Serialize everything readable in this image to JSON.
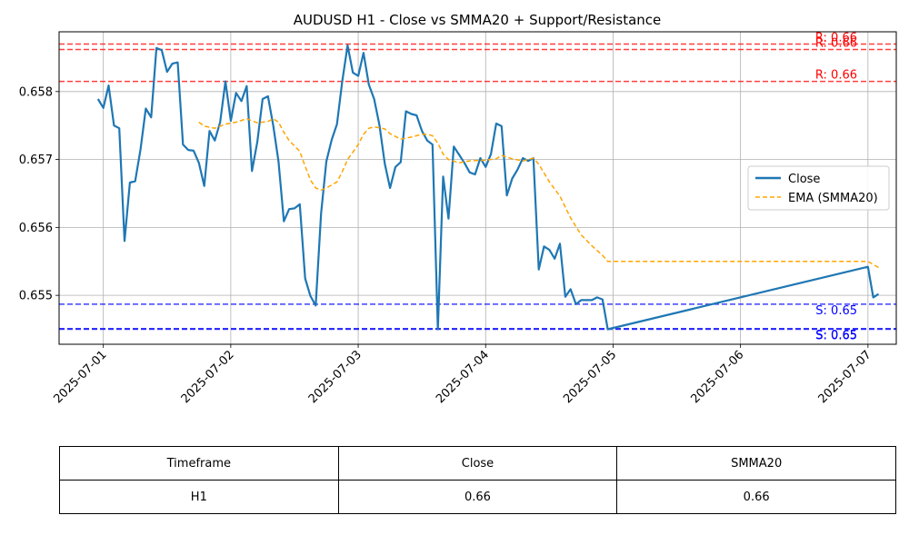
{
  "chart_data": {
    "type": "line",
    "title": "AUDUSD H1 - Close vs SMMA20 + Support/Resistance",
    "xlabel": "",
    "ylabel": "",
    "x_ticks": [
      "2025-07-01",
      "2025-07-02",
      "2025-07-03",
      "2025-07-04",
      "2025-07-05",
      "2025-07-06",
      "2025-07-07"
    ],
    "y_ticks": [
      "0.655",
      "0.656",
      "0.657",
      "0.658"
    ],
    "xlim": [
      "2025-06-30 15:40",
      "2025-07-07 05:20"
    ],
    "ylim": [
      0.65428,
      0.65888
    ],
    "grid": true,
    "legend_position": "center-right",
    "series": [
      {
        "name": "Close",
        "color": "#1f77b4",
        "style": "solid",
        "points": [
          [
            "2025-06-30 23:00",
            0.65789
          ],
          [
            "2025-07-01 00:00",
            0.65776
          ],
          [
            "2025-07-01 01:00",
            0.65809
          ],
          [
            "2025-07-01 02:00",
            0.6575
          ],
          [
            "2025-07-01 03:00",
            0.65746
          ],
          [
            "2025-07-01 04:00",
            0.6558
          ],
          [
            "2025-07-01 05:00",
            0.65666
          ],
          [
            "2025-07-01 06:00",
            0.65668
          ],
          [
            "2025-07-01 07:00",
            0.65715
          ],
          [
            "2025-07-01 08:00",
            0.65775
          ],
          [
            "2025-07-01 09:00",
            0.65762
          ],
          [
            "2025-07-01 10:00",
            0.65864
          ],
          [
            "2025-07-01 11:00",
            0.65861
          ],
          [
            "2025-07-01 12:00",
            0.65829
          ],
          [
            "2025-07-01 13:00",
            0.65841
          ],
          [
            "2025-07-01 14:00",
            0.65843
          ],
          [
            "2025-07-01 15:00",
            0.65722
          ],
          [
            "2025-07-01 16:00",
            0.65714
          ],
          [
            "2025-07-01 17:00",
            0.65713
          ],
          [
            "2025-07-01 18:00",
            0.65695
          ],
          [
            "2025-07-01 19:00",
            0.65661
          ],
          [
            "2025-07-01 20:00",
            0.65742
          ],
          [
            "2025-07-01 21:00",
            0.65728
          ],
          [
            "2025-07-01 22:00",
            0.65755
          ],
          [
            "2025-07-01 23:00",
            0.65815
          ],
          [
            "2025-07-02 00:00",
            0.65757
          ],
          [
            "2025-07-02 01:00",
            0.65798
          ],
          [
            "2025-07-02 02:00",
            0.65786
          ],
          [
            "2025-07-02 03:00",
            0.65808
          ],
          [
            "2025-07-02 04:00",
            0.65683
          ],
          [
            "2025-07-02 05:00",
            0.65726
          ],
          [
            "2025-07-02 06:00",
            0.65789
          ],
          [
            "2025-07-02 07:00",
            0.65793
          ],
          [
            "2025-07-02 08:00",
            0.6575
          ],
          [
            "2025-07-02 09:00",
            0.65697
          ],
          [
            "2025-07-02 10:00",
            0.65609
          ],
          [
            "2025-07-02 11:00",
            0.65627
          ],
          [
            "2025-07-02 12:00",
            0.65628
          ],
          [
            "2025-07-02 13:00",
            0.65634
          ],
          [
            "2025-07-02 14:00",
            0.65525
          ],
          [
            "2025-07-02 15:00",
            0.65499
          ],
          [
            "2025-07-02 16:00",
            0.65485
          ],
          [
            "2025-07-02 17:00",
            0.6562
          ],
          [
            "2025-07-02 18:00",
            0.65697
          ],
          [
            "2025-07-02 19:00",
            0.65729
          ],
          [
            "2025-07-02 20:00",
            0.65752
          ],
          [
            "2025-07-02 21:00",
            0.65815
          ],
          [
            "2025-07-02 22:00",
            0.65868
          ],
          [
            "2025-07-02 23:00",
            0.65828
          ],
          [
            "2025-07-03 00:00",
            0.65823
          ],
          [
            "2025-07-03 01:00",
            0.65857
          ],
          [
            "2025-07-03 02:00",
            0.6581
          ],
          [
            "2025-07-03 03:00",
            0.65789
          ],
          [
            "2025-07-03 04:00",
            0.65751
          ],
          [
            "2025-07-03 05:00",
            0.65694
          ],
          [
            "2025-07-03 06:00",
            0.65658
          ],
          [
            "2025-07-03 07:00",
            0.65689
          ],
          [
            "2025-07-03 08:00",
            0.65696
          ],
          [
            "2025-07-03 09:00",
            0.65771
          ],
          [
            "2025-07-03 10:00",
            0.65767
          ],
          [
            "2025-07-03 11:00",
            0.65765
          ],
          [
            "2025-07-03 12:00",
            0.65742
          ],
          [
            "2025-07-03 13:00",
            0.65728
          ],
          [
            "2025-07-03 14:00",
            0.65722
          ],
          [
            "2025-07-03 15:00",
            0.6545
          ],
          [
            "2025-07-03 16:00",
            0.65675
          ],
          [
            "2025-07-03 17:00",
            0.65613
          ],
          [
            "2025-07-03 18:00",
            0.65719
          ],
          [
            "2025-07-03 19:00",
            0.65707
          ],
          [
            "2025-07-03 20:00",
            0.65695
          ],
          [
            "2025-07-03 21:00",
            0.65681
          ],
          [
            "2025-07-03 22:00",
            0.65678
          ],
          [
            "2025-07-03 23:00",
            0.65702
          ],
          [
            "2025-07-04 00:00",
            0.65689
          ],
          [
            "2025-07-04 01:00",
            0.65708
          ],
          [
            "2025-07-04 02:00",
            0.65753
          ],
          [
            "2025-07-04 03:00",
            0.65749
          ],
          [
            "2025-07-04 04:00",
            0.65647
          ],
          [
            "2025-07-04 05:00",
            0.65672
          ],
          [
            "2025-07-04 06:00",
            0.65685
          ],
          [
            "2025-07-04 07:00",
            0.65702
          ],
          [
            "2025-07-04 08:00",
            0.65698
          ],
          [
            "2025-07-04 09:00",
            0.65702
          ],
          [
            "2025-07-04 10:00",
            0.65538
          ],
          [
            "2025-07-04 11:00",
            0.65572
          ],
          [
            "2025-07-04 12:00",
            0.65567
          ],
          [
            "2025-07-04 13:00",
            0.65554
          ],
          [
            "2025-07-04 14:00",
            0.65576
          ],
          [
            "2025-07-04 15:00",
            0.65498
          ],
          [
            "2025-07-04 16:00",
            0.65509
          ],
          [
            "2025-07-04 17:00",
            0.65487
          ],
          [
            "2025-07-04 18:00",
            0.65493
          ],
          [
            "2025-07-04 19:00",
            0.65493
          ],
          [
            "2025-07-04 20:00",
            0.65493
          ],
          [
            "2025-07-04 21:00",
            0.65497
          ],
          [
            "2025-07-04 22:00",
            0.65494
          ],
          [
            "2025-07-04 23:00",
            0.6545
          ],
          [
            "2025-07-07 00:00",
            0.65542
          ],
          [
            "2025-07-07 01:00",
            0.65497
          ],
          [
            "2025-07-07 02:00",
            0.65502
          ]
        ]
      },
      {
        "name": "EMA (SMMA20)",
        "color": "#ffa500",
        "style": "dashed",
        "points": [
          [
            "2025-07-01 18:00",
            0.65755
          ],
          [
            "2025-07-01 19:00",
            0.65749
          ],
          [
            "2025-07-01 21:00",
            0.65746
          ],
          [
            "2025-07-01 23:00",
            0.65752
          ],
          [
            "2025-07-02 01:00",
            0.65755
          ],
          [
            "2025-07-02 03:00",
            0.6576
          ],
          [
            "2025-07-02 05:00",
            0.65754
          ],
          [
            "2025-07-02 07:00",
            0.65756
          ],
          [
            "2025-07-02 08:00",
            0.6576
          ],
          [
            "2025-07-02 09:00",
            0.65755
          ],
          [
            "2025-07-02 10:00",
            0.6574
          ],
          [
            "2025-07-02 11:00",
            0.65728
          ],
          [
            "2025-07-02 13:00",
            0.65712
          ],
          [
            "2025-07-02 14:00",
            0.6569
          ],
          [
            "2025-07-02 15:00",
            0.6567
          ],
          [
            "2025-07-02 16:00",
            0.65658
          ],
          [
            "2025-07-02 17:00",
            0.65655
          ],
          [
            "2025-07-02 18:00",
            0.65658
          ],
          [
            "2025-07-02 20:00",
            0.65667
          ],
          [
            "2025-07-02 21:00",
            0.65682
          ],
          [
            "2025-07-02 22:00",
            0.657
          ],
          [
            "2025-07-03 00:00",
            0.65722
          ],
          [
            "2025-07-03 01:00",
            0.65737
          ],
          [
            "2025-07-03 02:00",
            0.65746
          ],
          [
            "2025-07-03 03:00",
            0.65748
          ],
          [
            "2025-07-03 05:00",
            0.65745
          ],
          [
            "2025-07-03 06:00",
            0.65738
          ],
          [
            "2025-07-03 08:00",
            0.6573
          ],
          [
            "2025-07-03 10:00",
            0.65733
          ],
          [
            "2025-07-03 12:00",
            0.65737
          ],
          [
            "2025-07-03 13:00",
            0.65737
          ],
          [
            "2025-07-03 14:00",
            0.65735
          ],
          [
            "2025-07-03 15:00",
            0.65724
          ],
          [
            "2025-07-03 16:00",
            0.65708
          ],
          [
            "2025-07-03 17:00",
            0.657
          ],
          [
            "2025-07-03 19:00",
            0.65695
          ],
          [
            "2025-07-03 21:00",
            0.65698
          ],
          [
            "2025-07-04 00:00",
            0.65699
          ],
          [
            "2025-07-04 02:00",
            0.65701
          ],
          [
            "2025-07-04 03:00",
            0.65706
          ],
          [
            "2025-07-04 05:00",
            0.65701
          ],
          [
            "2025-07-04 07:00",
            0.65698
          ],
          [
            "2025-07-04 09:00",
            0.65702
          ],
          [
            "2025-07-04 10:00",
            0.65693
          ],
          [
            "2025-07-04 12:00",
            0.65667
          ],
          [
            "2025-07-04 14:00",
            0.65646
          ],
          [
            "2025-07-04 16:00",
            0.65614
          ],
          [
            "2025-07-04 18:00",
            0.65589
          ],
          [
            "2025-07-04 20:00",
            0.65573
          ],
          [
            "2025-07-04 22:00",
            0.65559
          ],
          [
            "2025-07-04 23:00",
            0.6555
          ],
          [
            "2025-07-07 00:00",
            0.6555
          ],
          [
            "2025-07-07 02:00",
            0.65541
          ]
        ]
      }
    ],
    "levels": [
      {
        "kind": "resistance",
        "value": 0.6587,
        "label": "R: 0.66",
        "color": "#ff0000"
      },
      {
        "kind": "resistance",
        "value": 0.65862,
        "label": "R: 0.66",
        "color": "#ff0000"
      },
      {
        "kind": "resistance",
        "value": 0.65815,
        "label": "R: 0.66",
        "color": "#ff0000"
      },
      {
        "kind": "support",
        "value": 0.65487,
        "label": "S: 0.65",
        "color": "#0000ff"
      },
      {
        "kind": "support",
        "value": 0.65451,
        "label": "S: 0.65",
        "color": "#0000ff"
      },
      {
        "kind": "support",
        "value": 0.6545,
        "label": "S: 0.65",
        "color": "#0000ff"
      }
    ]
  },
  "table": {
    "headers": [
      "Timeframe",
      "Close",
      "SMMA20"
    ],
    "rows": [
      [
        "H1",
        "0.66",
        "0.66"
      ]
    ]
  }
}
